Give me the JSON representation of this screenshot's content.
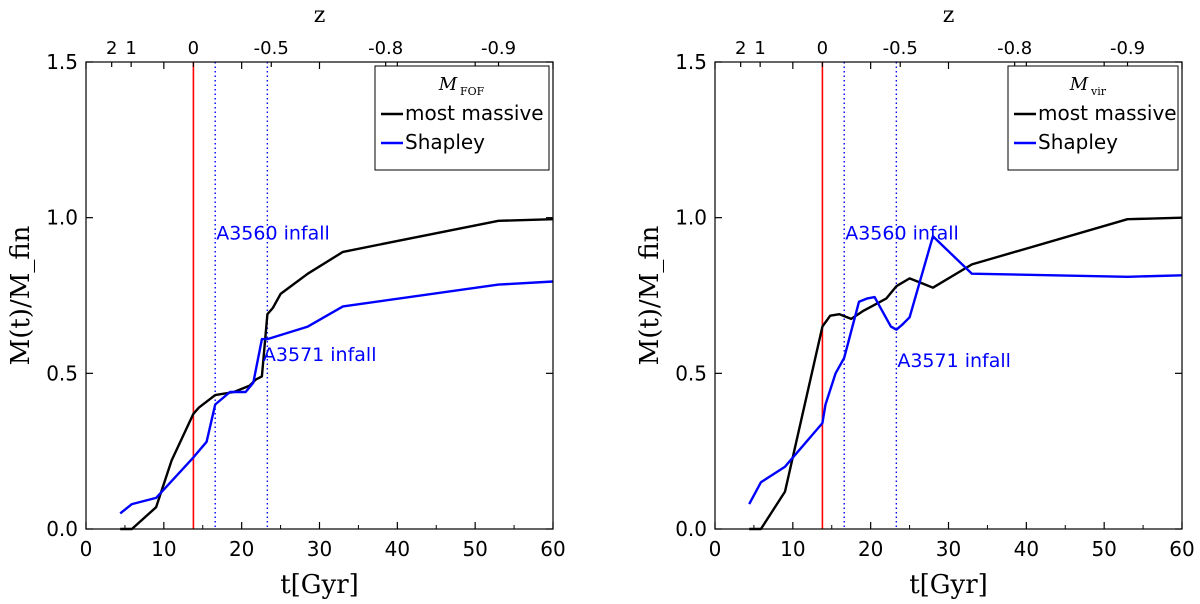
{
  "chart_data": [
    {
      "type": "line",
      "panel": "left",
      "xlabel": "t[Gyr]",
      "ylabel": "M(t)/M_fin",
      "top_axis_label": "z",
      "xlim": [
        0,
        60
      ],
      "ylim": [
        0,
        1.5
      ],
      "x_ticks": [
        0,
        10,
        20,
        30,
        40,
        50,
        60
      ],
      "y_ticks": [
        "0.0",
        "0.5",
        "1.0",
        "1.5"
      ],
      "top_ticks": [
        {
          "t": 3.3,
          "label": "2"
        },
        {
          "t": 5.8,
          "label": "1"
        },
        {
          "t": 13.8,
          "label": "0"
        },
        {
          "t": 23.8,
          "label": "-0.5"
        },
        {
          "t": 38.5,
          "label": "-0.8"
        },
        {
          "t": 53.0,
          "label": "-0.9"
        }
      ],
      "legend_title": "M_FOF",
      "legend_title_main": "M",
      "legend_title_sub": "FOF",
      "legend_position": "top-right",
      "vlines": [
        {
          "x": 13.8,
          "style": "solid",
          "color": "#ff0000"
        },
        {
          "x": 16.6,
          "style": "dotted",
          "color": "#0000ff"
        },
        {
          "x": 23.3,
          "style": "dotted",
          "color": "#0000ff"
        }
      ],
      "annotations": [
        {
          "text": "A3560 infall",
          "x": 16.6,
          "y": 0.93,
          "color": "#0000ff"
        },
        {
          "text": "A3571 infall",
          "x": 22.6,
          "y": 0.54,
          "color": "#0000ff"
        }
      ],
      "series": [
        {
          "name": "most massive",
          "color": "#000000",
          "x": [
            4.4,
            5.9,
            9.0,
            11.0,
            13.8,
            14.5,
            16.6,
            19.0,
            21.0,
            21.8,
            22.6,
            23.3,
            24.0,
            25.0,
            28.5,
            33.0,
            53.0,
            60.0
          ],
          "y": [
            0.0,
            0.0,
            0.07,
            0.22,
            0.37,
            0.39,
            0.43,
            0.44,
            0.46,
            0.48,
            0.49,
            0.69,
            0.71,
            0.755,
            0.82,
            0.89,
            0.99,
            0.995
          ]
        },
        {
          "name": "Shapley",
          "color": "#0000ff",
          "x": [
            4.4,
            5.9,
            9.0,
            13.8,
            15.5,
            16.6,
            18.5,
            20.5,
            21.5,
            22.6,
            23.3,
            28.5,
            33.0,
            53.0,
            60.0
          ],
          "y": [
            0.05,
            0.08,
            0.1,
            0.23,
            0.28,
            0.4,
            0.44,
            0.44,
            0.47,
            0.61,
            0.61,
            0.65,
            0.715,
            0.785,
            0.795
          ]
        }
      ]
    },
    {
      "type": "line",
      "panel": "right",
      "xlabel": "t[Gyr]",
      "ylabel": "M(t)/M_fin",
      "top_axis_label": "z",
      "xlim": [
        0,
        60
      ],
      "ylim": [
        0,
        1.5
      ],
      "x_ticks": [
        0,
        10,
        20,
        30,
        40,
        50,
        60
      ],
      "y_ticks": [
        "0.0",
        "0.5",
        "1.0",
        "1.5"
      ],
      "top_ticks": [
        {
          "t": 3.3,
          "label": "2"
        },
        {
          "t": 5.8,
          "label": "1"
        },
        {
          "t": 13.8,
          "label": "0"
        },
        {
          "t": 23.8,
          "label": "-0.5"
        },
        {
          "t": 38.5,
          "label": "-0.8"
        },
        {
          "t": 53.0,
          "label": "-0.9"
        }
      ],
      "legend_title": "M_vir",
      "legend_title_main": "M",
      "legend_title_sub": "vir",
      "legend_position": "top-right",
      "vlines": [
        {
          "x": 13.8,
          "style": "solid",
          "color": "#ff0000"
        },
        {
          "x": 16.6,
          "style": "dotted",
          "color": "#0000ff"
        },
        {
          "x": 23.3,
          "style": "dotted",
          "color": "#0000ff"
        }
      ],
      "annotations": [
        {
          "text": "A3560 infall",
          "x": 16.6,
          "y": 0.93,
          "color": "#0000ff"
        },
        {
          "text": "A3571 infall",
          "x": 23.3,
          "y": 0.52,
          "color": "#0000ff"
        }
      ],
      "series": [
        {
          "name": "most massive",
          "color": "#000000",
          "x": [
            4.4,
            5.9,
            9.0,
            13.8,
            14.8,
            16.0,
            17.5,
            19.0,
            20.5,
            22.0,
            23.3,
            25.0,
            26.5,
            28.0,
            33.0,
            53.0,
            60.0
          ],
          "y": [
            0.0,
            0.0,
            0.12,
            0.65,
            0.685,
            0.69,
            0.675,
            0.7,
            0.72,
            0.74,
            0.78,
            0.805,
            0.79,
            0.775,
            0.85,
            0.995,
            1.0
          ]
        },
        {
          "name": "Shapley",
          "color": "#0000ff",
          "x": [
            4.4,
            5.9,
            9.0,
            13.8,
            14.2,
            15.5,
            16.6,
            18.5,
            19.5,
            20.5,
            21.5,
            22.6,
            23.3,
            24.0,
            25.0,
            28.0,
            33.0,
            53.0,
            60.0
          ],
          "y": [
            0.08,
            0.15,
            0.2,
            0.34,
            0.4,
            0.5,
            0.55,
            0.73,
            0.74,
            0.745,
            0.7,
            0.65,
            0.64,
            0.655,
            0.68,
            0.94,
            0.82,
            0.81,
            0.815
          ]
        }
      ]
    }
  ]
}
